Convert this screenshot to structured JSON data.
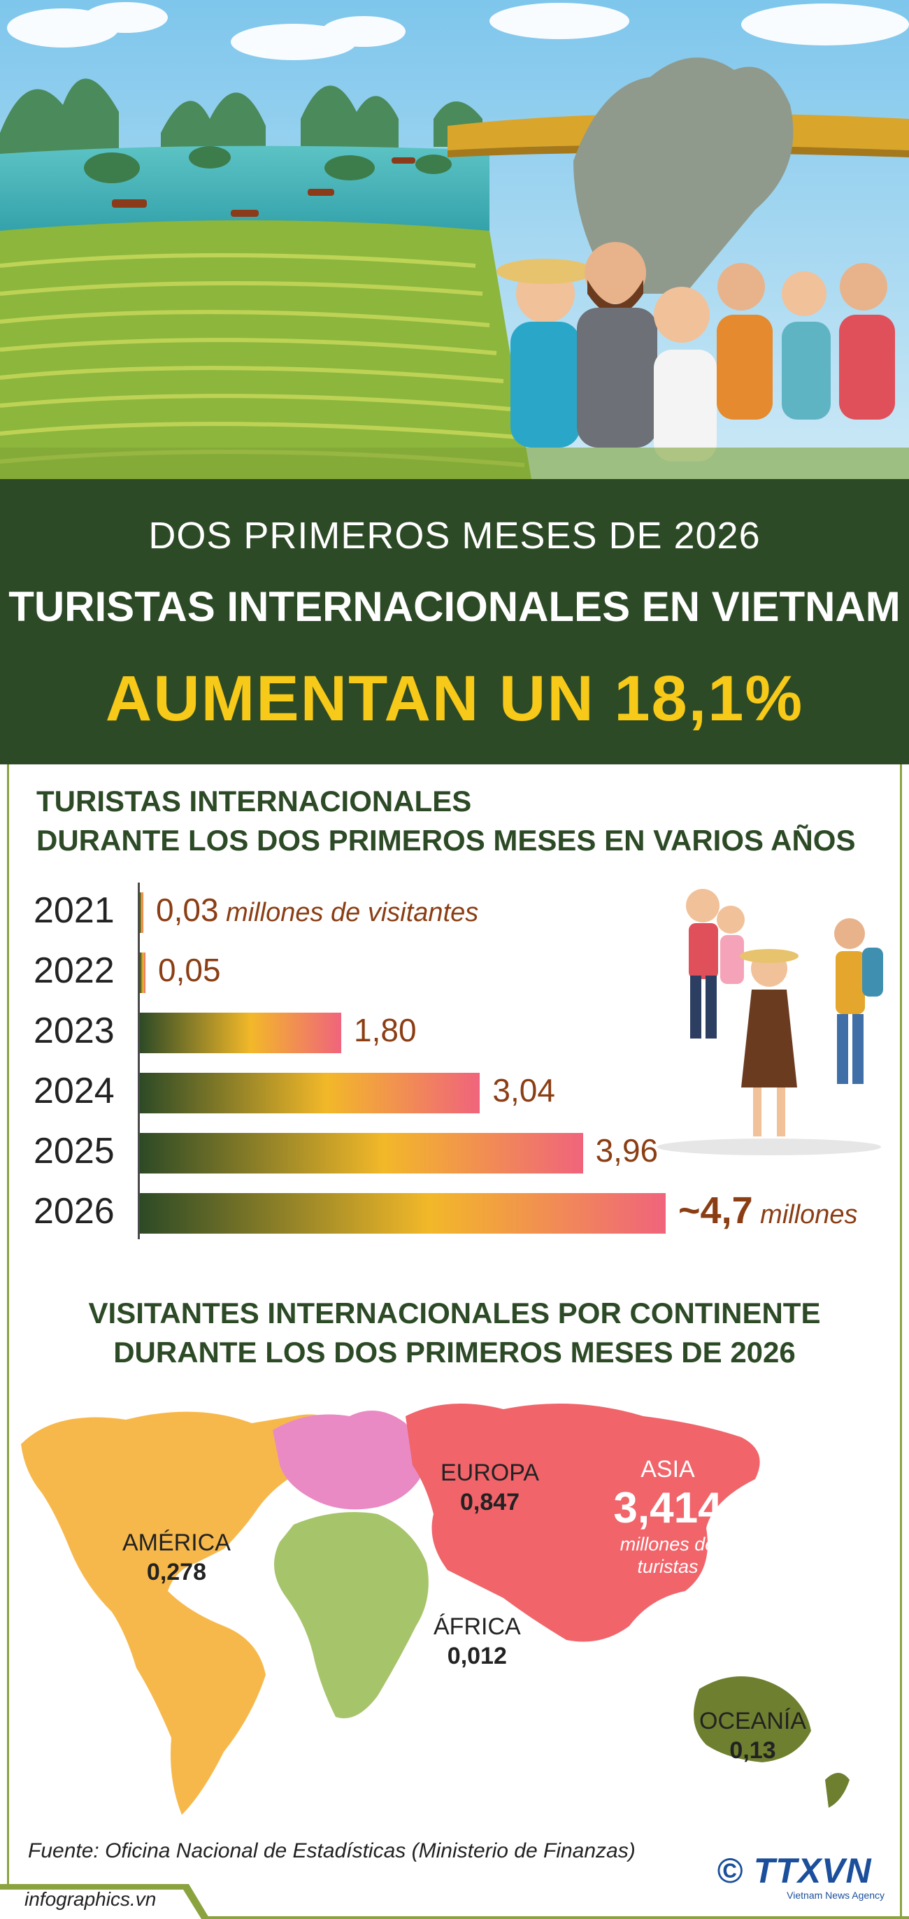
{
  "header": {
    "line1": "DOS PRIMEROS MESES DE 2026",
    "line2": "TURISTAS INTERNACIONALES EN VIETNAM",
    "headline": "AUMENTAN UN 18,1%"
  },
  "section1": {
    "title_line1": "TURISTAS INTERNACIONALES",
    "title_line2": "DURANTE LOS DOS PRIMEROS MESES EN VARIOS AÑOS"
  },
  "chart_data": {
    "type": "bar",
    "orientation": "horizontal",
    "categories": [
      "2021",
      "2022",
      "2023",
      "2024",
      "2025",
      "2026"
    ],
    "values": [
      0.03,
      0.05,
      1.8,
      3.04,
      3.96,
      4.7
    ],
    "value_labels": [
      "0,03",
      "0,05",
      "1,80",
      "3,04",
      "3,96",
      "~4,7"
    ],
    "first_unit": "millones de visitantes",
    "last_unit": "millones",
    "colors": {
      "start": "#2d4a26",
      "mid": "#f2b829",
      "end": "#f0647c",
      "value_text": "#8b3e14"
    }
  },
  "section2": {
    "title_line1": "VISITANTES INTERNACIONALES POR CONTINENTE",
    "title_line2": "DURANTE LOS DOS PRIMEROS MESES DE 2026"
  },
  "map": {
    "america": {
      "name": "AMÉRICA",
      "value": "0,278",
      "color": "#f7b84b"
    },
    "europa": {
      "name": "EUROPA",
      "value": "0,847",
      "color": "#e98ac4"
    },
    "asia": {
      "name": "ASIA",
      "value": "3,414",
      "unit_line1": "millones de",
      "unit_line2": "turistas",
      "color": "#f0646a"
    },
    "africa": {
      "name": "ÁFRICA",
      "value": "0,012",
      "color": "#a6c46a"
    },
    "oceania": {
      "name": "OCEANÍA",
      "value": "0,13",
      "color": "#6e7f2f"
    }
  },
  "footer": {
    "source": "Fuente: Oficina Nacional de Estadísticas (Ministerio de Finanzas)",
    "site": "infographics.vn",
    "logo_text": "© TTXVN",
    "logo_subtext": "Vietnam News Agency"
  }
}
